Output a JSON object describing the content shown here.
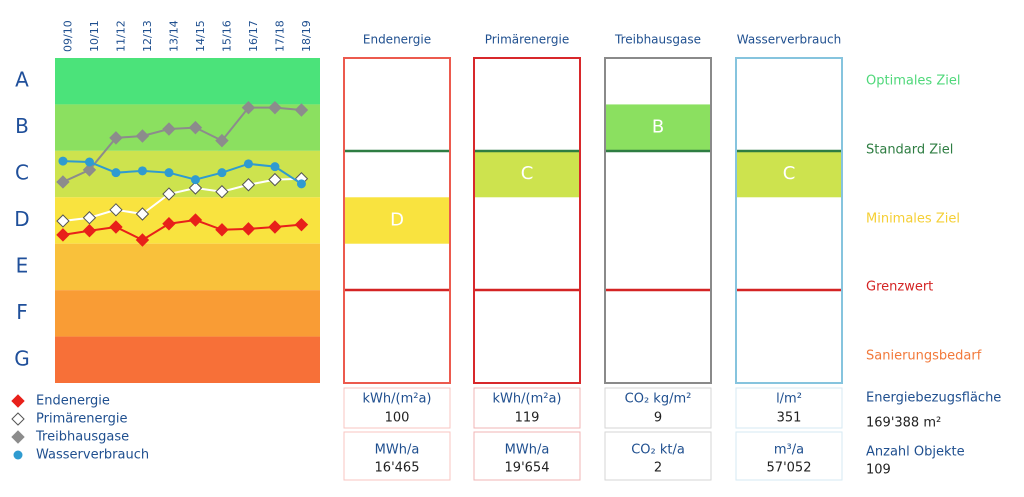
{
  "chart_data": {
    "type": "line",
    "categories": [
      "09/10",
      "10/11",
      "11/12",
      "12/13",
      "13/14",
      "14/15",
      "15/16",
      "16/17",
      "17/18",
      "18/19"
    ],
    "ylim": [
      0,
      7
    ],
    "yticks": [
      {
        "value": 6.5,
        "label": "A"
      },
      {
        "value": 5.5,
        "label": "B"
      },
      {
        "value": 4.5,
        "label": "C"
      },
      {
        "value": 3.5,
        "label": "D"
      },
      {
        "value": 2.5,
        "label": "E"
      },
      {
        "value": 1.5,
        "label": "F"
      },
      {
        "value": 0.5,
        "label": "G"
      }
    ],
    "band_colors": [
      "#4be37a",
      "#8be060",
      "#cde34e",
      "#f9e33f",
      "#f9c13b",
      "#f99c35",
      "#f77038"
    ],
    "series": [
      {
        "name": "Endenergie",
        "color": "#e8201a",
        "marker": "diamond",
        "values": [
          3.19,
          3.28,
          3.36,
          3.08,
          3.43,
          3.51,
          3.3,
          3.32,
          3.36,
          3.41
        ]
      },
      {
        "name": "Primärenergie",
        "color": "#ffffff",
        "marker": "diamond",
        "values": [
          3.49,
          3.56,
          3.73,
          3.64,
          4.07,
          4.2,
          4.12,
          4.27,
          4.38,
          4.4
        ]
      },
      {
        "name": "Treibhausgase",
        "color": "#8c8c8c",
        "marker": "diamond",
        "values": [
          4.33,
          4.59,
          5.28,
          5.32,
          5.47,
          5.5,
          5.22,
          5.93,
          5.93,
          5.88
        ]
      },
      {
        "name": "Wasserverbrauch",
        "color": "#2f9bd0",
        "marker": "circle",
        "values": [
          4.78,
          4.76,
          4.53,
          4.57,
          4.53,
          4.38,
          4.53,
          4.72,
          4.66,
          4.29
        ]
      }
    ]
  },
  "indicators": [
    {
      "title": "Endenergie",
      "rating": "D",
      "border": "#ec5a4e",
      "unit1": "kWh/(m²a)",
      "value1": "100",
      "unit2": "MWh/a",
      "value2": "16'465"
    },
    {
      "title": "Primärenergie",
      "rating": "C",
      "border": "#d8282b",
      "unit1": "kWh/(m²a)",
      "value1": "119",
      "unit2": "MWh/a",
      "value2": "19'654"
    },
    {
      "title": "Treibhausgase",
      "rating": "B",
      "border": "#8a8a8a",
      "unit1": "CO₂ kg/m²",
      "value1": "9",
      "unit2": "CO₂ kt/a",
      "value2": "2"
    },
    {
      "title": "Wasserverbrauch",
      "rating": "C",
      "border": "#86c4de",
      "unit1": "l/m²",
      "value1": "351",
      "unit2": "m³/a",
      "value2": "57'052"
    }
  ],
  "targets": [
    "Optimales Ziel",
    "Standard Ziel",
    "Minimales Ziel",
    "Grenzwert",
    "Sanierungsbedarf"
  ],
  "summary": {
    "area_label": "Energiebezugsfläche",
    "area_value": "169'388 m²",
    "count_label": "Anzahl Objekte",
    "count_value": "109"
  }
}
